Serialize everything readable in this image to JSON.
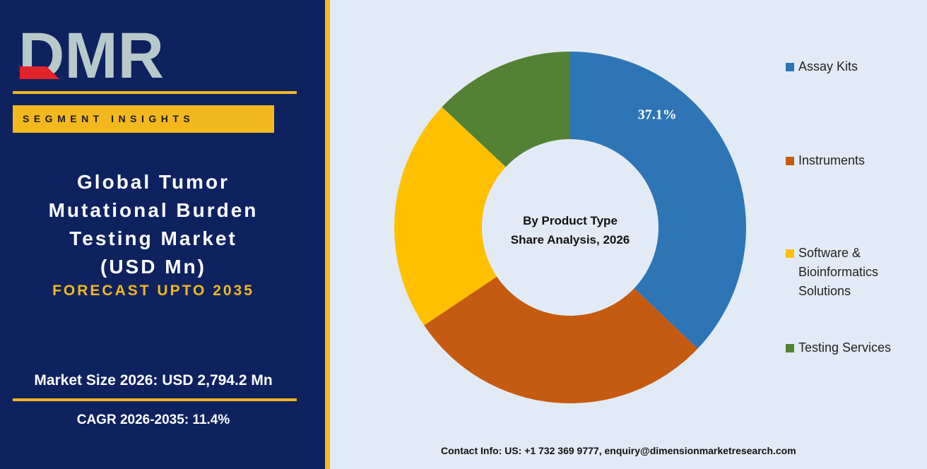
{
  "brand": {
    "logo_text": "DMR",
    "colors": {
      "panel": "#0e2260",
      "accent": "#f2b81d",
      "logo_gray": "#b8c9c9",
      "logo_red": "#e3232a"
    }
  },
  "header": {
    "banner": "SEGMENT INSIGHTS",
    "title_lines": [
      "Global Tumor",
      "Mutational Burden",
      "Testing Market",
      "(USD Mn)"
    ],
    "forecast": "FORECAST UPTO 2035"
  },
  "stats": {
    "market_size": "Market Size 2026: USD 2,794.2 Mn",
    "cagr": "CAGR 2026-2035: 11.4%"
  },
  "chart_data": {
    "type": "pie",
    "donut": true,
    "center_label": [
      "By Product Type",
      "Share Analysis, 2026"
    ],
    "legend_position": "right",
    "series": [
      {
        "name": "Assay Kits",
        "value": 37.1,
        "color": "#2e75b6",
        "label": "37.1%"
      },
      {
        "name": "Instruments",
        "value": 28.5,
        "color": "#c55a11",
        "label": ""
      },
      {
        "name": "Software & Bioinformatics Solutions",
        "legend_lines": [
          "Software &",
          "Bioinformatics",
          "Solutions"
        ],
        "value": 21.4,
        "color": "#ffc000",
        "label": ""
      },
      {
        "name": "Testing Services",
        "value": 13.0,
        "color": "#548235",
        "label": ""
      }
    ]
  },
  "footer": {
    "contact": "Contact Info: US: +1 732 369 9777, enquiry@dimensionmarketresearch.com"
  }
}
